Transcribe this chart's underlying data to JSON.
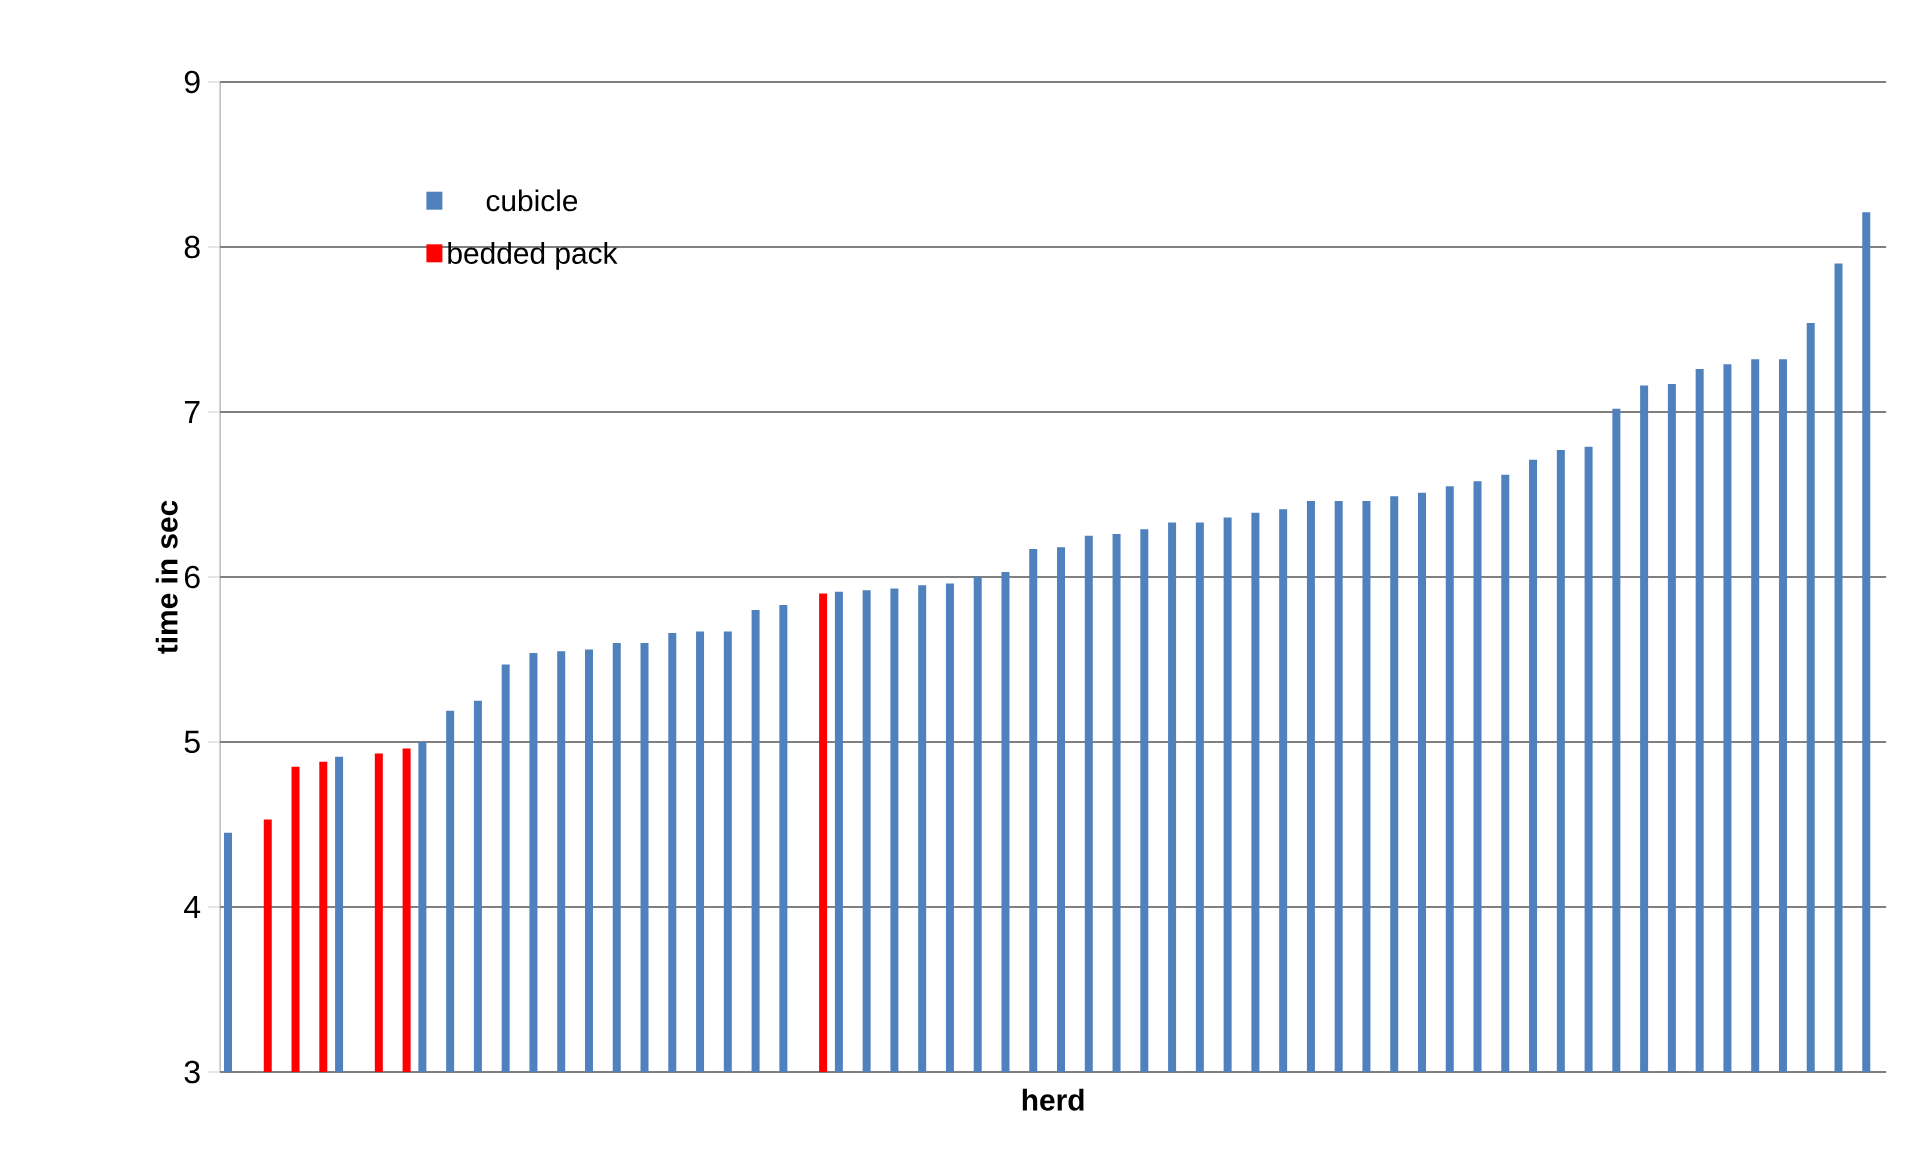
{
  "chart_data": {
    "type": "bar",
    "xlabel": "herd",
    "ylabel": "time in sec",
    "categories": [
      null,
      null,
      null,
      null,
      null,
      null,
      null,
      null,
      null,
      null,
      null,
      null,
      null,
      null,
      null,
      null,
      null,
      null,
      null,
      null,
      null,
      null,
      null,
      null,
      null,
      null,
      null,
      null,
      null,
      null,
      null,
      null,
      null,
      null,
      null,
      null,
      null,
      null,
      null,
      null,
      null,
      null,
      null,
      null,
      null,
      null,
      null,
      null,
      null,
      null,
      null,
      null,
      null,
      null,
      null,
      null,
      null,
      null,
      null,
      null
    ],
    "series": [
      {
        "name": "cubicle",
        "color": "#4f81bd",
        "values": [
          4.45,
          null,
          null,
          null,
          4.91,
          null,
          null,
          5.0,
          5.19,
          5.25,
          5.47,
          5.54,
          5.55,
          5.56,
          5.6,
          5.6,
          5.66,
          5.67,
          5.67,
          5.8,
          5.83,
          null,
          5.91,
          5.92,
          5.93,
          5.95,
          5.96,
          6.0,
          6.03,
          6.17,
          6.18,
          6.25,
          6.26,
          6.29,
          6.33,
          6.33,
          6.36,
          6.39,
          6.41,
          6.46,
          6.46,
          6.46,
          6.49,
          6.51,
          6.55,
          6.58,
          6.62,
          6.71,
          6.77,
          6.79,
          7.02,
          7.16,
          7.17,
          7.26,
          7.29,
          7.32,
          7.32,
          7.54,
          7.9,
          8.21
        ]
      },
      {
        "name": "bedded pack",
        "color": "#ff0000",
        "values": [
          null,
          4.53,
          4.85,
          4.88,
          null,
          4.93,
          4.96,
          null,
          null,
          null,
          null,
          null,
          null,
          null,
          null,
          null,
          null,
          null,
          null,
          null,
          null,
          5.9,
          null,
          null,
          null,
          null,
          null,
          null,
          null,
          null,
          null,
          null,
          null,
          null,
          null,
          null,
          null,
          null,
          null,
          null,
          null,
          null,
          null,
          null,
          null,
          null,
          null,
          null,
          null,
          null,
          null,
          null,
          null,
          null,
          null,
          null,
          null,
          null,
          null,
          null
        ]
      }
    ],
    "ylim": [
      3,
      9
    ],
    "yticks": [
      3,
      4,
      5,
      6,
      7,
      8,
      9
    ],
    "grid": "y",
    "legend": "top left"
  }
}
